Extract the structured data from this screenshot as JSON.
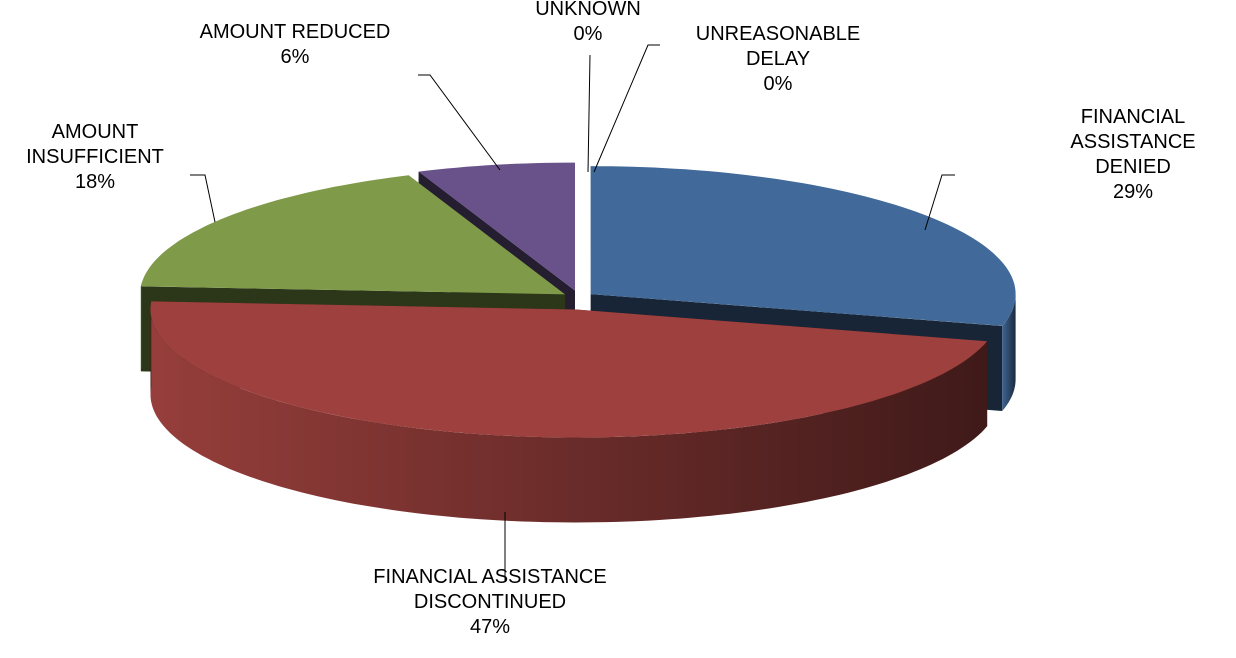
{
  "chart_data": {
    "type": "pie",
    "view": "3d",
    "exploded": true,
    "categories": [
      "FINANCIAL ASSISTANCE DENIED",
      "FINANCIAL ASSISTANCE DISCONTINUED",
      "AMOUNT INSUFFICIENT",
      "AMOUNT REDUCED",
      "UNKNOWN",
      "UNREASONABLE DELAY"
    ],
    "values": [
      29,
      47,
      18,
      6,
      0,
      0
    ],
    "value_labels": [
      "29%",
      "47%",
      "18%",
      "6%",
      "0%",
      "0%"
    ],
    "colors": [
      "#41699a",
      "#9e413e",
      "#7f9a48",
      "#69528a",
      "#4bacc6",
      "#f79646"
    ]
  }
}
